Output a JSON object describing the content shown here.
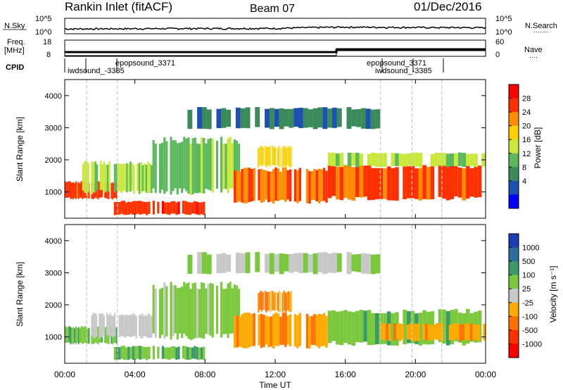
{
  "header": {
    "station": "Rankin Inlet (fitACF)",
    "beam": "Beam 07",
    "date": "01/Dec/2016"
  },
  "noise_panel": {
    "left_label": "N.Sky",
    "right_label": "N.Search",
    "right_dots": "·······",
    "y_ticks_left": [
      "10^5",
      "10^0"
    ],
    "y_ticks_right": [
      "10^5",
      "10^0"
    ]
  },
  "freq_panel": {
    "left_label_1": "Freq.",
    "left_label_2": "[MHz]",
    "right_label": "Nave",
    "right_dots": "····",
    "y_ticks_left": [
      "18",
      "8"
    ],
    "y_ticks_right": [
      "60",
      "0"
    ]
  },
  "cpid": {
    "label": "CPID",
    "text_left_1": "epopsound_3371",
    "text_left_2": "iwdsound_-3385",
    "text_right_1": "epopsound_3371",
    "text_right_2": "iwdsound_-3385"
  },
  "power_panel": {
    "ylabel": "Slant Range [km]",
    "colorbar_label": "Power [dB]",
    "colorbar_ticks": [
      "28",
      "24",
      "20",
      "16",
      "12",
      "8",
      "4"
    ],
    "colorbar_colors": [
      "#ff0000",
      "#ff3000",
      "#ff8c00",
      "#ffd000",
      "#c8e83c",
      "#5cb85c",
      "#3a8a5a",
      "#1e50b4",
      "#0000ff"
    ]
  },
  "velocity_panel": {
    "ylabel": "Slant Range [km]",
    "colorbar_label": "Velocity [m s⁻¹]",
    "colorbar_ticks": [
      "1000",
      "500",
      "100",
      "25",
      "-25",
      "-100",
      "-500",
      "-1000"
    ],
    "colorbar_colors": [
      "#1e3cb4",
      "#2a6e9c",
      "#3a9a6a",
      "#7ac83c",
      "#c8c8c8",
      "#ffaa00",
      "#ff7000",
      "#ff3000",
      "#ff0000"
    ]
  },
  "xaxis": {
    "label": "Time UT",
    "ticks": [
      "00:00",
      "04:00",
      "08:00",
      "12:00",
      "16:00",
      "20:00",
      "00:00"
    ]
  },
  "chart_data": [
    {
      "type": "line",
      "title": "N.Sky / N.Search",
      "x": [
        "00:00",
        "04:00",
        "08:00",
        "12:00",
        "16:00",
        "20:00",
        "00:00"
      ],
      "series": [
        {
          "name": "N.Sky",
          "values": [
            10,
            12,
            14,
            15,
            40,
            30,
            25
          ]
        }
      ],
      "ylim": [
        1,
        100000
      ],
      "yscale": "log"
    },
    {
      "type": "line",
      "title": "Freq. [MHz] / Nave",
      "x": [
        "00:00",
        "15:00",
        "15:01",
        "24:00"
      ],
      "series": [
        {
          "name": "Freq.",
          "values": [
            10,
            10,
            12,
            12
          ]
        }
      ],
      "ylim": [
        8,
        18
      ]
    },
    {
      "type": "heatmap",
      "title": "Power [dB]",
      "xlabel": "Time UT",
      "ylabel": "Slant Range [km]",
      "xlim": [
        0,
        24
      ],
      "ylim": [
        180,
        4500
      ],
      "ytick_values": [
        1000,
        2000,
        3000,
        4000
      ],
      "color_range": [
        0,
        30
      ],
      "regions": [
        {
          "t0": 0.0,
          "t1": 3.0,
          "r0": 800,
          "r1": 1300,
          "value": 26
        },
        {
          "t0": 2.8,
          "t1": 8.0,
          "r0": 300,
          "r1": 700,
          "value": 27
        },
        {
          "t0": 1.0,
          "t1": 5.0,
          "r0": 1000,
          "r1": 1900,
          "value": 14
        },
        {
          "t0": 5.0,
          "t1": 10.0,
          "r0": 1000,
          "r1": 2600,
          "value": 12
        },
        {
          "t0": 9.5,
          "t1": 15.0,
          "r0": 700,
          "r1": 1700,
          "value": 24
        },
        {
          "t0": 11.0,
          "t1": 13.0,
          "r0": 1800,
          "r1": 2400,
          "value": 18
        },
        {
          "t0": 15.0,
          "t1": 24.0,
          "r0": 800,
          "r1": 1800,
          "value": 25
        },
        {
          "t0": 15.0,
          "t1": 24.0,
          "r0": 1800,
          "r1": 2200,
          "value": 14
        },
        {
          "t0": 7.0,
          "t1": 18.0,
          "r0": 3000,
          "r1": 3600,
          "value": 6
        }
      ]
    },
    {
      "type": "heatmap",
      "title": "Velocity [m s-1]",
      "xlabel": "Time UT",
      "ylabel": "Slant Range [km]",
      "xlim": [
        0,
        24
      ],
      "ylim": [
        180,
        4500
      ],
      "ytick_values": [
        1000,
        2000,
        3000,
        4000
      ],
      "color_range": [
        -1000,
        1000
      ],
      "regions": [
        {
          "t0": 0.0,
          "t1": 3.0,
          "r0": 800,
          "r1": 1300,
          "value": 300
        },
        {
          "t0": 2.8,
          "t1": 8.0,
          "r0": 300,
          "r1": 700,
          "value": 400
        },
        {
          "t0": 1.5,
          "t1": 5.0,
          "r0": 1000,
          "r1": 1700,
          "value": 0
        },
        {
          "t0": 5.0,
          "t1": 10.0,
          "r0": 1000,
          "r1": 2600,
          "value": 200
        },
        {
          "t0": 9.5,
          "t1": 15.0,
          "r0": 700,
          "r1": 1700,
          "value": -300
        },
        {
          "t0": 11.0,
          "t1": 13.0,
          "r0": 1800,
          "r1": 2400,
          "value": -400
        },
        {
          "t0": 15.0,
          "t1": 24.0,
          "r0": 800,
          "r1": 1800,
          "value": 300
        },
        {
          "t0": 18.0,
          "t1": 24.0,
          "r0": 900,
          "r1": 1400,
          "value": -300
        },
        {
          "t0": 7.0,
          "t1": 18.0,
          "r0": 3000,
          "r1": 3600,
          "value": 100
        }
      ]
    }
  ]
}
